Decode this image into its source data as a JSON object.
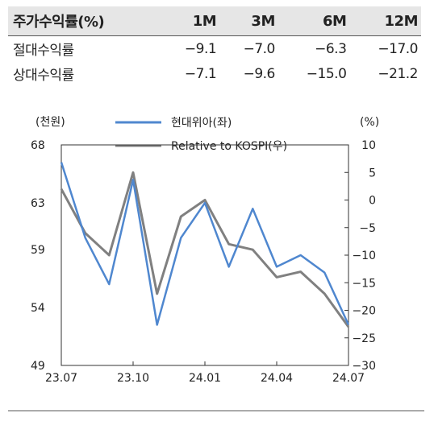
{
  "table": {
    "header": [
      "주가수익률(%)",
      "1M",
      "3M",
      "6M",
      "12M"
    ],
    "rows": [
      {
        "label": "절대수익률",
        "values": [
          "−9.1",
          "−7.0",
          "−6.3",
          "−17.0"
        ]
      },
      {
        "label": "상대수익률",
        "values": [
          "−7.1",
          "−9.6",
          "−15.0",
          "−21.2"
        ]
      }
    ]
  },
  "chart_data": {
    "type": "line",
    "left_axis_label": "(천원)",
    "right_axis_label": "(%)",
    "x_ticks": [
      "23.07",
      "23.10",
      "24.01",
      "24.04",
      "24.07"
    ],
    "y_left": {
      "min": 49,
      "max": 68,
      "ticks": [
        "68",
        "63",
        "59",
        "54",
        "49"
      ]
    },
    "y_right": {
      "min": -30,
      "max": 10,
      "ticks": [
        "10",
        "5",
        "0",
        "−5",
        "−10",
        "−15",
        "−20",
        "−25",
        "−30"
      ]
    },
    "legend_position": "top-center",
    "series": [
      {
        "name": "현대위아(좌)",
        "axis": "left",
        "color": "#4f87cf",
        "x": [
          "23.07",
          "23.08",
          "23.09",
          "23.10",
          "23.11",
          "23.12",
          "24.01",
          "24.02",
          "24.03",
          "24.04",
          "24.05",
          "24.06",
          "24.07"
        ],
        "values": [
          66.5,
          60.0,
          56.0,
          65.0,
          52.5,
          60.0,
          63.0,
          57.5,
          62.5,
          57.5,
          58.5,
          57.0,
          52.5
        ]
      },
      {
        "name": "Relative to KOSPI(우)",
        "axis": "right",
        "color": "#808080",
        "x": [
          "23.07",
          "23.08",
          "23.09",
          "23.10",
          "23.11",
          "23.12",
          "24.01",
          "24.02",
          "24.03",
          "24.04",
          "24.05",
          "24.06",
          "24.07"
        ],
        "values": [
          2.0,
          -6.0,
          -10.0,
          5.0,
          -17.0,
          -3.0,
          0.0,
          -8.0,
          -9.0,
          -14.0,
          -13.0,
          -17.0,
          -23.0
        ]
      }
    ]
  }
}
